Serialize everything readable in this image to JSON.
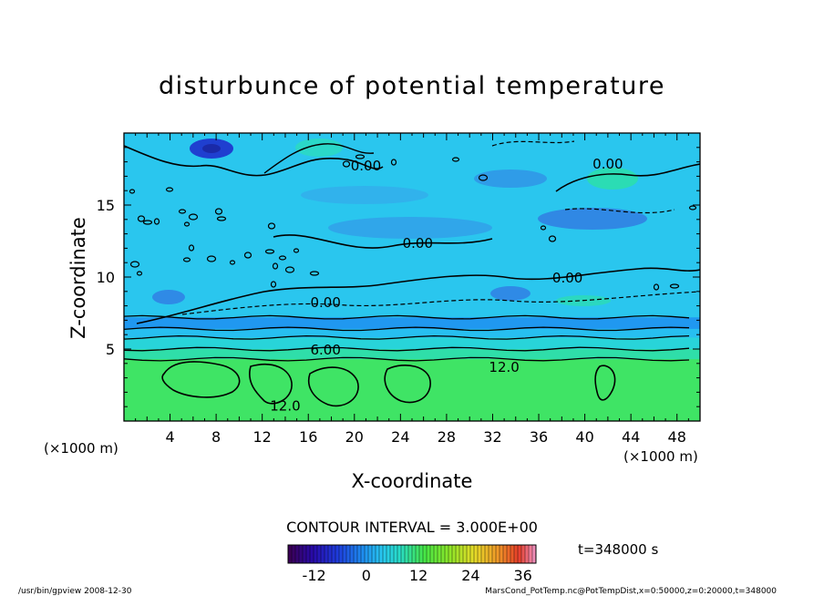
{
  "chart_data": {
    "type": "heatmap",
    "title": "disturbunce of potential temperature",
    "xlabel": "X-coordinate",
    "ylabel": "Z-coordinate",
    "x_unit": "(×1000 m)",
    "z_unit": "(×1000 m)",
    "xlim": [
      0,
      50
    ],
    "ylim": [
      0,
      20
    ],
    "x_ticks": [
      4,
      8,
      12,
      16,
      20,
      24,
      28,
      32,
      36,
      40,
      44,
      48
    ],
    "y_ticks": [
      5,
      10,
      15
    ],
    "contour_interval_text": "CONTOUR INTERVAL = 3.000E+00",
    "contour_labels": [
      {
        "text": "0.00",
        "x": 21,
        "z": 17.8
      },
      {
        "text": "0.00",
        "x": 42,
        "z": 17.9
      },
      {
        "text": "0.00",
        "x": 25.5,
        "z": 12.4
      },
      {
        "text": "0.00",
        "x": 38.5,
        "z": 10.0
      },
      {
        "text": "0.00",
        "x": 17.5,
        "z": 8.3
      },
      {
        "text": "6.00",
        "x": 17.5,
        "z": 5.0
      },
      {
        "text": "12.0",
        "x": 33,
        "z": 3.8
      },
      {
        "text": "12.0",
        "x": 14,
        "z": 1.1
      }
    ],
    "layers": [
      {
        "z_top": 4.3,
        "value": 12
      },
      {
        "z_top": 5.0,
        "value": 9
      },
      {
        "z_top": 5.8,
        "value": 6
      },
      {
        "z_top": 6.4,
        "value": 3
      },
      {
        "z_top": 7.2,
        "value": 0
      },
      {
        "z_top": 20,
        "value": -1
      }
    ],
    "colorbar": {
      "min": -18,
      "max": 39,
      "ticks": [
        "-12",
        "0",
        "12",
        "24",
        "36"
      ],
      "tick_values": [
        -12,
        0,
        12,
        24,
        36
      ]
    },
    "time_text": "t=348000 s"
  },
  "footer": {
    "left": "/usr/bin/gpview   2008-12-30",
    "right": "MarsCond_PotTemp.nc@PotTempDist,x=0:50000,z=0:20000,t=348000"
  },
  "colors": {
    "deep_blue": "#1f2fb0",
    "light_blue": "#29c4f0",
    "cyan": "#27d8d0",
    "green": "#36e64e",
    "bright_green": "#5fea2e"
  }
}
